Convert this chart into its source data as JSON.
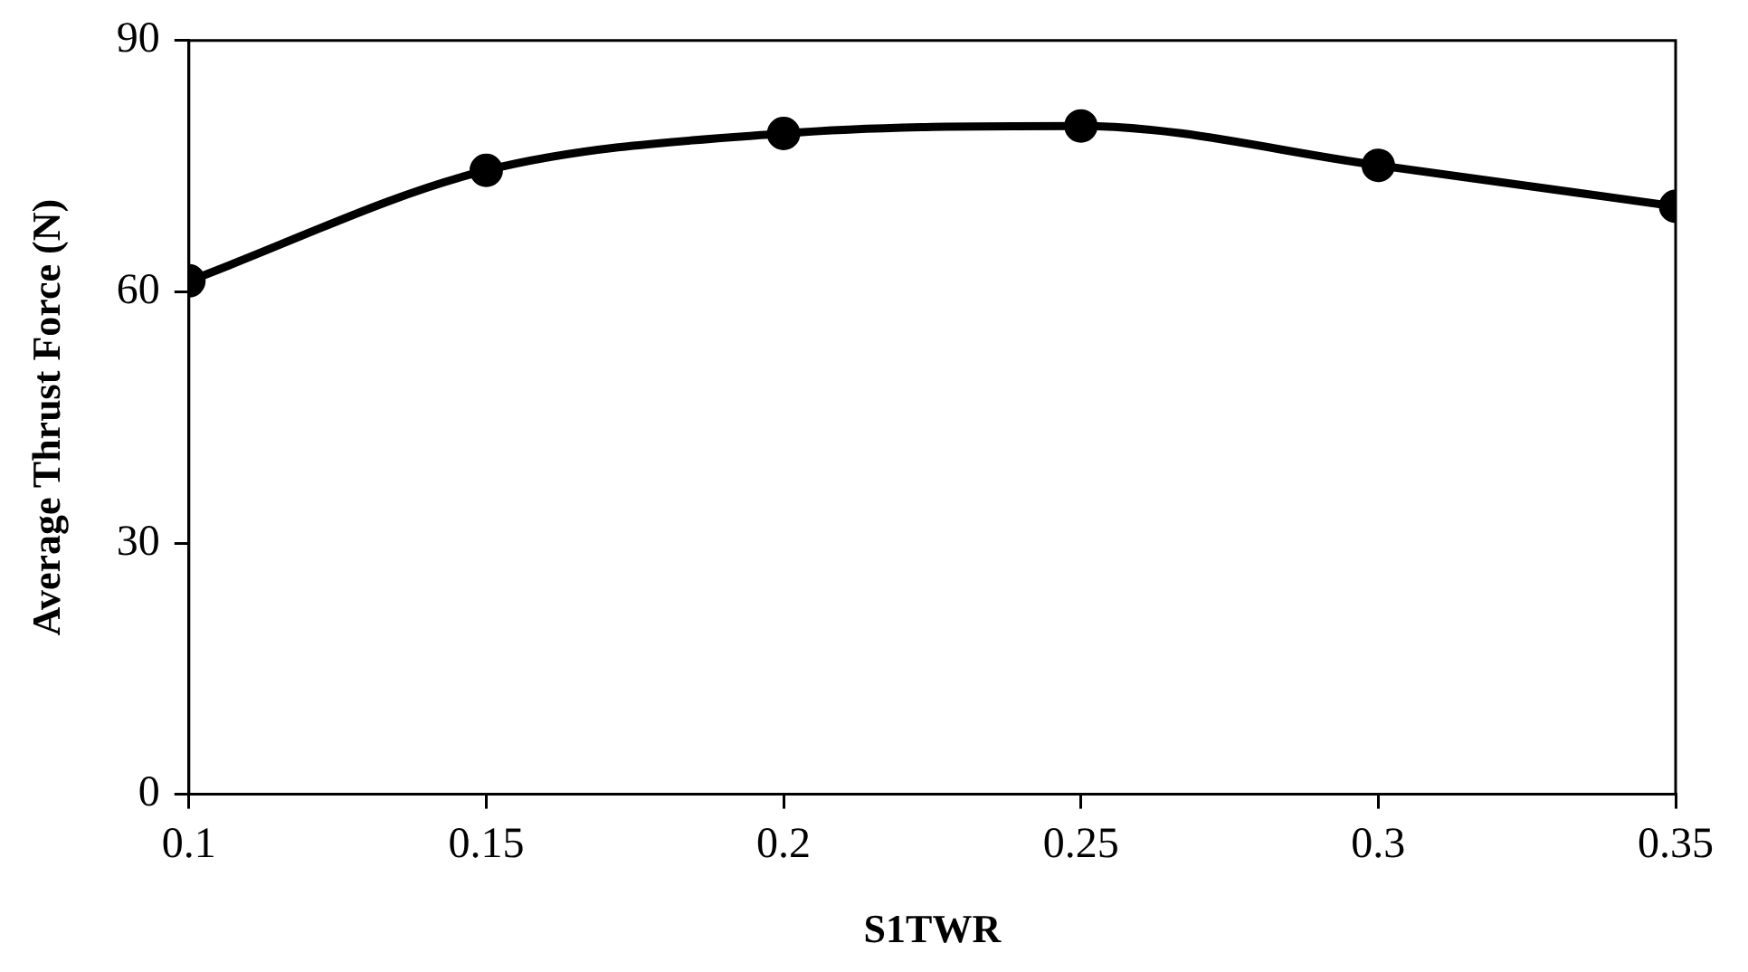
{
  "chart_data": {
    "type": "line",
    "xlabel": "S1TWR",
    "ylabel": "Average Thrust Force (N)",
    "x": [
      0.1,
      0.15,
      0.2,
      0.25,
      0.3,
      0.35
    ],
    "series": [
      {
        "color": "#000000",
        "values": [
          61.3,
          74.5,
          78.9,
          79.8,
          75.1,
          70.2
        ]
      }
    ],
    "xlim": [
      0.1,
      0.35
    ],
    "xticks": [
      0.1,
      0.15,
      0.2,
      0.25,
      0.3,
      0.35
    ],
    "ylim": [
      0,
      90
    ],
    "yticks": [
      0,
      30,
      60,
      90
    ],
    "grid": false,
    "legend": false,
    "marker": "circle",
    "line_style": "solid"
  }
}
